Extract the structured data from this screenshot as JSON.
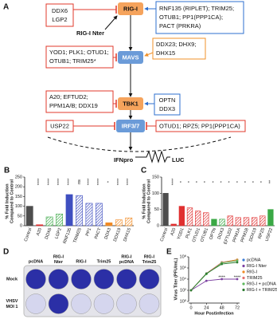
{
  "diagram": {
    "panel": "A",
    "nodes": [
      "RIG-I",
      "MAVS",
      "TBK1",
      "IRF3/7"
    ],
    "rig_i_nter": "RIG-I Nter",
    "regulators": [
      [
        "DDX6",
        "LGP2"
      ],
      [
        "RNF135 (RIPLET); TRIM25;",
        "OTUB1; PP1(PPP1CA);",
        "PACT (PRKRA)"
      ],
      [
        "YOD1; PLK1; OTUD1;",
        "OTUB1; TRIM25*"
      ],
      [
        "DDX23; DHX9;",
        "DHX15"
      ],
      [
        "A20; EFTUD2;",
        "PPM1A/B; DDX19"
      ],
      [
        "OPTN",
        "DDX3"
      ],
      [
        "USP22"
      ],
      [
        "OTUD1; RPZ5; PP1(PPP1CA)"
      ]
    ],
    "promoter": "IFNpro",
    "reporter": "LUC"
  },
  "plate": {
    "panel": "D",
    "columns": [
      [
        "pcDNA"
      ],
      [
        "RIG-I",
        "Nter"
      ],
      [
        "RIG-I"
      ],
      [
        "Trim25"
      ],
      [
        "RIG-I",
        "pcDNA"
      ],
      [
        "RIG-I",
        "Trim25"
      ]
    ],
    "rows": [
      [
        "Mock"
      ],
      [
        "VHSV",
        "MOI 1"
      ]
    ]
  },
  "chart_data": [
    {
      "type": "bar",
      "panel": "B",
      "ylabel": [
        "% Fold Induction",
        "Compared to Control"
      ],
      "categories": [
        "Control",
        "A20",
        "DDX6",
        "LGP2",
        "RNF135",
        "TRIM25",
        "PP1",
        "PACT",
        "DDX3",
        "DDX19",
        "DHX15"
      ],
      "values": [
        100,
        5,
        45,
        60,
        160,
        155,
        115,
        115,
        15,
        30,
        40
      ],
      "significance": [
        null,
        "****",
        "****",
        "****",
        "****",
        "ns",
        "****",
        "****",
        "*",
        "****",
        "****"
      ],
      "colors": [
        "#4d4d4d",
        "#e03030",
        "#3aa845",
        "#3aa845",
        "#3f4fc0",
        "#3f4fc0",
        "#3f4fc0",
        "#3f4fc0",
        "#f08a24",
        "#f08a24",
        "#f08a24"
      ],
      "hatch": [
        false,
        false,
        true,
        true,
        false,
        true,
        true,
        true,
        false,
        true,
        true
      ],
      "ylim": [
        0,
        250
      ],
      "yticks": [
        0,
        50,
        100,
        150,
        200,
        250
      ]
    },
    {
      "type": "bar",
      "panel": "C",
      "ylabel": [
        "% Fold Induction",
        "Compared to Control"
      ],
      "categories": [
        "Control",
        "A20",
        "YOD1",
        "PLK1",
        "OTUD1",
        "OTUB1",
        "OPTN",
        "DDX3",
        "EFTUD2",
        "PPM1A",
        "PPM1B",
        "DDX19",
        "RPZ5",
        "USP22"
      ],
      "values": [
        100,
        5,
        60,
        55,
        45,
        40,
        20,
        20,
        30,
        25,
        25,
        25,
        30,
        50
      ],
      "significance": [
        null,
        "****",
        "*",
        "*",
        "*",
        "*",
        "*",
        "*",
        "*",
        "*",
        "*",
        "*",
        "*",
        "**"
      ],
      "colors": [
        "#4d4d4d",
        "#e03030",
        "#e03030",
        "#e03030",
        "#e03030",
        "#e03030",
        "#3aa845",
        "#3aa845",
        "#e03030",
        "#e03030",
        "#e03030",
        "#e03030",
        "#e03030",
        "#3aa845"
      ],
      "hatch": [
        false,
        false,
        false,
        true,
        true,
        true,
        false,
        true,
        true,
        true,
        true,
        true,
        true,
        false
      ],
      "ylim": [
        0,
        150
      ],
      "yticks": [
        0,
        50,
        100,
        150
      ]
    },
    {
      "type": "line",
      "panel": "E",
      "ylabel": "Virus Titer (PFU/mL)",
      "xlabel": "Hour Postinfection",
      "x": [
        0,
        24,
        48,
        72
      ],
      "xlim": [
        0,
        72
      ],
      "xticks": [
        0,
        24,
        48,
        72
      ],
      "log": true,
      "ylim": [
        1,
        100000000
      ],
      "yticks": [
        {
          "value": 1,
          "label": "10⁰"
        },
        {
          "value": 100,
          "label": "10²"
        },
        {
          "value": 10000,
          "label": "10⁴"
        },
        {
          "value": 1000000,
          "label": "10⁶"
        },
        {
          "value": 100000000,
          "label": "10⁸"
        }
      ],
      "series": [
        {
          "name": "pcDNA",
          "color": "#3a7bd5",
          "values": [
            100,
            100000,
            10000000,
            30000000
          ]
        },
        {
          "name": "RIG-I Nter",
          "color": "#7b3fa0",
          "values": [
            100,
            5000,
            10000,
            10000
          ]
        },
        {
          "name": "RIG-I",
          "color": "#f08a24",
          "values": [
            100,
            100000,
            10000000,
            30000000
          ]
        },
        {
          "name": "TRIM25",
          "color": "#e36f6f",
          "values": [
            100,
            100000,
            10000000,
            20000000
          ]
        },
        {
          "name": "RIG-I + pcDNA",
          "color": "#5cb85c",
          "values": [
            100,
            80000,
            8000000,
            20000000
          ]
        },
        {
          "name": "RIG-I + TRIM25",
          "color": "#2e7d32",
          "values": [
            100,
            100000,
            5000000,
            10000000
          ]
        }
      ],
      "annotations": [
        {
          "text": "****",
          "x": 48
        },
        {
          "text": "****",
          "x": 72
        }
      ]
    }
  ]
}
